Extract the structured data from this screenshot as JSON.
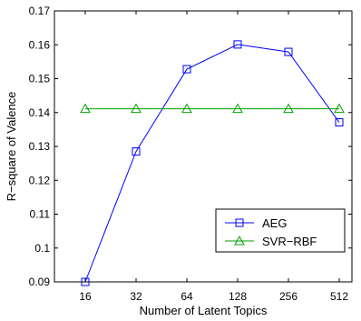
{
  "chart_data": {
    "type": "line",
    "title": "",
    "xlabel": "Number of Latent Topics",
    "ylabel": "R−square of Valence",
    "categories": [
      "16",
      "32",
      "64",
      "128",
      "256",
      "512"
    ],
    "ylim": [
      0.09,
      0.17
    ],
    "yticks": [
      "0.09",
      "0.1",
      "0.11",
      "0.12",
      "0.13",
      "0.14",
      "0.15",
      "0.16",
      "0.17"
    ],
    "grid": false,
    "legend_position": "bottom-right",
    "series": [
      {
        "name": "AEG",
        "marker": "square",
        "color": "#0000ff",
        "values": [
          0.09,
          0.1285,
          0.1528,
          0.1601,
          0.1579,
          0.1371
        ]
      },
      {
        "name": "SVR−RBF",
        "marker": "triangle",
        "color": "#00a000",
        "values": [
          0.1411,
          0.1411,
          0.1411,
          0.1411,
          0.1411,
          0.1411
        ]
      }
    ]
  }
}
